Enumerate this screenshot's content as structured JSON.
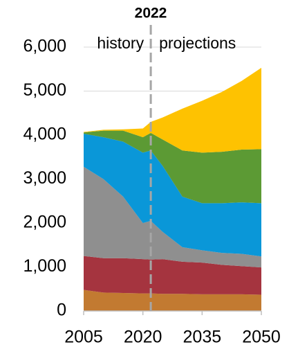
{
  "chart_data": {
    "type": "stacked_area",
    "title": "2022",
    "divider": 2022,
    "annotations": [
      "history",
      "projections"
    ],
    "x": [
      2005,
      2010,
      2015,
      2020,
      2022,
      2025,
      2030,
      2035,
      2040,
      2045,
      2050
    ],
    "series": [
      {
        "color": "#c27a31",
        "values": [
          480,
          420,
          410,
          400,
          400,
          390,
          390,
          380,
          380,
          380,
          370
        ]
      },
      {
        "color": "#a5343f",
        "values": [
          770,
          780,
          790,
          780,
          770,
          790,
          730,
          720,
          670,
          640,
          620
        ]
      },
      {
        "color": "#8f8f8f",
        "values": [
          2030,
          1800,
          1400,
          820,
          880,
          620,
          330,
          280,
          270,
          280,
          250
        ]
      },
      {
        "color": "#0a97d8",
        "values": [
          750,
          950,
          1250,
          1600,
          1600,
          1500,
          1150,
          1070,
          1130,
          1170,
          1210
        ]
      },
      {
        "color": "#5c9a34",
        "values": [
          30,
          150,
          250,
          350,
          400,
          600,
          1050,
          1150,
          1170,
          1200,
          1230
        ]
      },
      {
        "color": "#fec201",
        "values": [
          10,
          20,
          30,
          200,
          250,
          500,
          950,
          1180,
          1360,
          1560,
          1850
        ]
      }
    ],
    "xlim": [
      2005,
      2050
    ],
    "xticks": [
      2005,
      2020,
      2035,
      2050
    ],
    "ylim": [
      0,
      6000
    ],
    "yticks": [
      0,
      {
        "value": 1000,
        "label": "1,000"
      },
      {
        "value": 2000,
        "label": "2,000"
      },
      {
        "value": 3000,
        "label": "3,000"
      },
      {
        "value": 4000,
        "label": "4,000"
      },
      {
        "value": 5000,
        "label": "5,000"
      },
      {
        "value": 6000,
        "label": "6,000"
      }
    ],
    "grid": true
  }
}
